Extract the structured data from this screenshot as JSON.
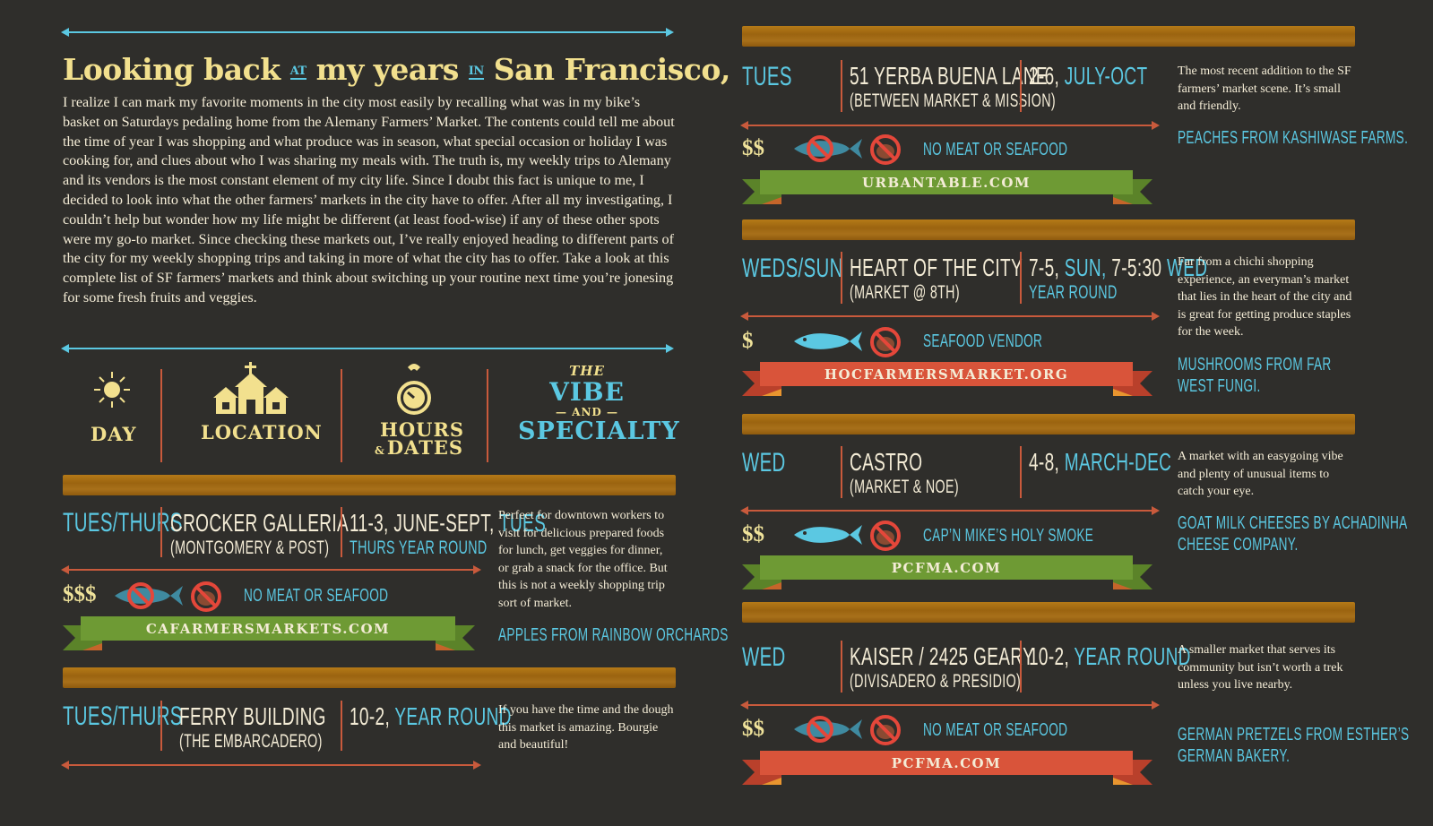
{
  "intro": {
    "title_part1": "Looking back",
    "title_small1": "AT",
    "title_part2": "my years",
    "title_small2": "IN",
    "title_part3": "San Francisco,",
    "body": "I realize I can mark my favorite moments in the city most easily by recalling what was in my bike’s basket on Saturdays pedaling home from the Alemany Farmers’ Market. The contents could tell me about the time of year I was shopping and what produce was in season, what special occasion or holiday I was cooking for, and clues about who I was sharing my meals with. The truth is, my weekly trips to Alemany and its vendors is the most constant element of my city life. Since I doubt this fact is unique to me, I decided to look into what the other farmers’ markets in the city have to offer. After all my investigating, I couldn’t help but wonder how my life might be different (at least food-wise) if any of these other spots were my go-to market. Since checking these markets out, I’ve really enjoyed heading to different parts of the city for my weekly shopping trips and taking in more of what the city has to offer. Take a look at this complete list of SF farmers’ markets and think about switching up your routine next time you’re jonesing for some fresh fruits and veggies."
  },
  "headers": {
    "day": "DAY",
    "location": "LOCATION",
    "hours_amp": "&",
    "hours_a": "HOURS",
    "hours_b": "DATES",
    "the": "THE",
    "vibe": "VIBE",
    "and": "AND",
    "specialty": "SPECIALTY"
  },
  "icons": {
    "day": "sun-icon",
    "location": "church-icon",
    "hours": "clock-icon",
    "meat": "no-meat-icon",
    "fish": "fish-icon",
    "no_fish": "no-fish-icon"
  },
  "colors": {
    "background": "#2f2e2b",
    "blue": "#5bc8e2",
    "cream": "#f4ecd6",
    "yellow": "#f2e08e",
    "wood": "#a8701a",
    "green_ribbon": "#6e9a34",
    "red_ribbon": "#d9543a",
    "arrow": "#c95a3c"
  },
  "markets": [
    {
      "day": "TUES/THURS",
      "location": "CROCKER GALLERIA",
      "cross": "(MONTGOMERY & POST)",
      "hours_a": "11-3, JUNE-SEPT,",
      "hours_b": "TUES",
      "hours_c": "THURS YEAR ROUND",
      "price": "$$$",
      "seafood": "NO MEAT OR SEAFOOD",
      "website": "CAFARMERSMARKETS.COM",
      "desc": "Perfect for downtown workers to visit for delicious prepared foods for lunch, get veggies for dinner, or grab a snack for the office. But this is not a weekly shopping trip sort of market.",
      "specialty": "APPLES FROM RAINBOW ORCHARDS"
    },
    {
      "day": "TUES/THURS",
      "location": "FERRY BUILDING",
      "cross": "(THE EMBARCADERO)",
      "hours_a": "10-2,",
      "hours_b": "YEAR ROUND",
      "desc": "If you have the time and the dough this market is amazing. Bourgie and beautiful!"
    },
    {
      "day": "TUES",
      "location": "51 YERBA BUENA LANE",
      "cross": "(BETWEEN MARKET & MISSION)",
      "hours_a": "2-6,",
      "hours_b": "JULY-OCT",
      "price": "$$",
      "seafood": "NO MEAT OR SEAFOOD",
      "website": "URBANTABLE.COM",
      "desc": "The most recent addition to the SF farmers’ market scene. It’s small and friendly.",
      "specialty": "PEACHES FROM KASHIWASE FARMS."
    },
    {
      "day": "WEDS/SUN",
      "location": "HEART OF THE CITY",
      "cross": "(MARKET @ 8TH)",
      "hours_a": "7-5,",
      "hours_b": "SUN,",
      "hours_c": "7-5:30",
      "hours_d": "WED",
      "hours_e": "YEAR ROUND",
      "price": "$",
      "seafood": "SEAFOOD VENDOR",
      "website": "HOCFARMERSMARKET.ORG",
      "desc": "Far from a chichi shopping experience, an everyman’s market that lies in the heart of the city and is great for getting produce staples for the week.",
      "specialty_a": "MUSHROOMS FROM FAR",
      "specialty_b": "WEST FUNGI."
    },
    {
      "day": "WED",
      "location": "CASTRO",
      "cross": "(MARKET & NOE)",
      "hours_a": "4-8,",
      "hours_b": "MARCH-DEC",
      "price": "$$",
      "seafood": "CAP’N MIKE’S HOLY SMOKE",
      "website": "PCFMA.COM",
      "desc": "A market with an easygoing vibe and plenty of unusual items to catch your eye.",
      "specialty_a": "GOAT MILK CHEESES BY ACHADINHA",
      "specialty_b": "CHEESE COMPANY."
    },
    {
      "day": "WED",
      "location": "KAISER / 2425 GEARY",
      "cross": "(DIVISADERO & PRESIDIO)",
      "hours_a": "10-2,",
      "hours_b": "YEAR ROUND",
      "price": "$$",
      "seafood": "NO MEAT OR SEAFOOD",
      "website": "PCFMA.COM",
      "desc": "A smaller market that serves its community but isn’t worth a trek unless you live nearby.",
      "specialty_a": "GERMAN PRETZELS FROM ESTHER’S",
      "specialty_b": "GERMAN BAKERY."
    }
  ]
}
